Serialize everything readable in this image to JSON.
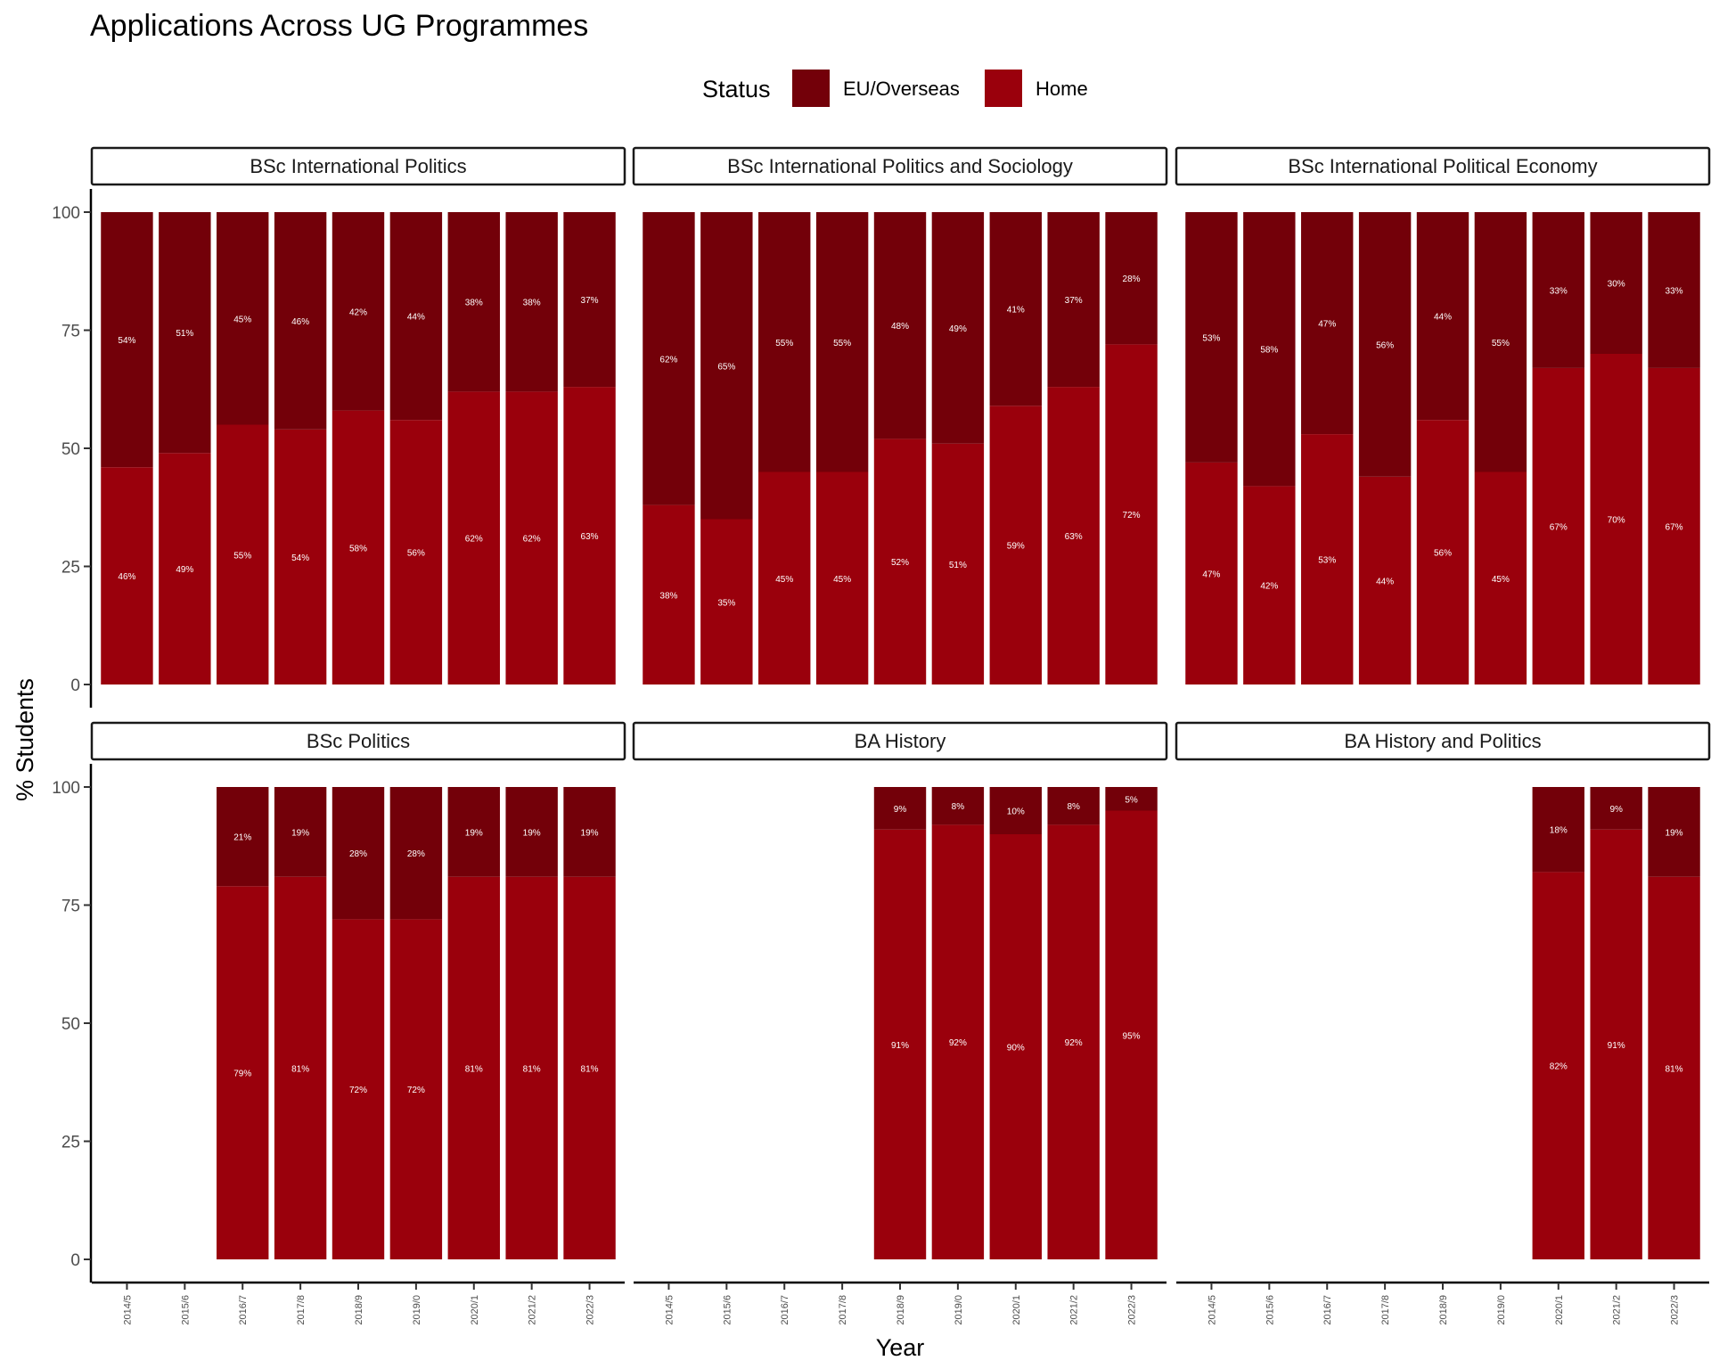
{
  "chart_data": {
    "type": "bar",
    "stacked": true,
    "title": "Applications Across UG Programmes",
    "xlabel": "Year",
    "ylabel": "% Students",
    "ylim": [
      0,
      100
    ],
    "yticks": [
      0,
      25,
      50,
      75,
      100
    ],
    "legend": {
      "title": "Status",
      "placement": "top",
      "entries": [
        {
          "name": "EU/Overseas",
          "color": "#730009"
        },
        {
          "name": "Home",
          "color": "#9a000c"
        }
      ]
    },
    "categories": [
      "2014/5",
      "2015/6",
      "2016/7",
      "2017/8",
      "2018/9",
      "2019/0",
      "2020/1",
      "2021/2",
      "2022/3"
    ],
    "panels": [
      {
        "name": "BSc International Politics",
        "series": [
          {
            "name": "Home",
            "values": [
              46,
              49,
              55,
              54,
              58,
              56,
              62,
              62,
              63
            ]
          },
          {
            "name": "EU/Overseas",
            "values": [
              54,
              51,
              45,
              46,
              42,
              44,
              38,
              38,
              37
            ]
          }
        ]
      },
      {
        "name": "BSc International Politics and Sociology",
        "series": [
          {
            "name": "Home",
            "values": [
              38,
              35,
              45,
              45,
              52,
              51,
              59,
              63,
              72
            ]
          },
          {
            "name": "EU/Overseas",
            "values": [
              62,
              65,
              55,
              55,
              48,
              49,
              41,
              37,
              28
            ]
          }
        ]
      },
      {
        "name": "BSc International Political Economy",
        "series": [
          {
            "name": "Home",
            "values": [
              47,
              42,
              53,
              44,
              56,
              45,
              67,
              70,
              67
            ]
          },
          {
            "name": "EU/Overseas",
            "values": [
              53,
              58,
              47,
              56,
              44,
              55,
              33,
              30,
              33
            ]
          }
        ]
      },
      {
        "name": "BSc Politics",
        "series": [
          {
            "name": "Home",
            "values": [
              null,
              null,
              79,
              81,
              72,
              72,
              81,
              81,
              81
            ]
          },
          {
            "name": "EU/Overseas",
            "values": [
              null,
              null,
              21,
              19,
              28,
              28,
              19,
              19,
              19
            ]
          }
        ]
      },
      {
        "name": "BA History",
        "series": [
          {
            "name": "Home",
            "values": [
              null,
              null,
              null,
              null,
              91,
              92,
              90,
              92,
              95
            ]
          },
          {
            "name": "EU/Overseas",
            "values": [
              null,
              null,
              null,
              null,
              9,
              8,
              10,
              8,
              5
            ]
          }
        ]
      },
      {
        "name": "BA History and Politics",
        "series": [
          {
            "name": "Home",
            "values": [
              null,
              null,
              null,
              null,
              null,
              null,
              82,
              91,
              81
            ]
          },
          {
            "name": "EU/Overseas",
            "values": [
              null,
              null,
              null,
              null,
              null,
              null,
              18,
              9,
              19
            ]
          }
        ]
      }
    ]
  }
}
